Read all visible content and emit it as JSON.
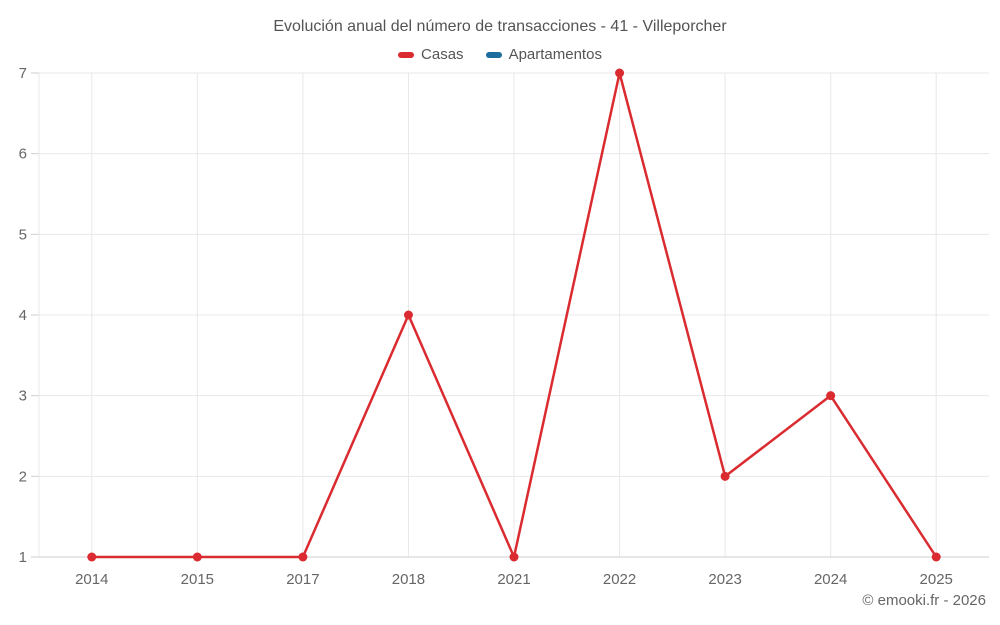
{
  "chart_data": {
    "type": "line",
    "title": "Evolución anual del número de transacciones - 41 - Villeporcher",
    "categories": [
      "2014",
      "2015",
      "2017",
      "2018",
      "2021",
      "2022",
      "2023",
      "2024",
      "2025"
    ],
    "series": [
      {
        "name": "Casas",
        "color": "#da2b30",
        "values": [
          1,
          1,
          1,
          4,
          1,
          7,
          2,
          3,
          1
        ]
      },
      {
        "name": "Apartamentos",
        "color": "#1a6d9c",
        "values": []
      }
    ],
    "xlabel": "",
    "ylabel": "",
    "ylim": [
      1,
      7
    ],
    "yticks": [
      1,
      2,
      3,
      4,
      5,
      6,
      7
    ],
    "grid": true,
    "legend_position": "top"
  },
  "footer": {
    "text": "© emooki.fr - 2026"
  },
  "colors": {
    "background": "#ffffff",
    "grid": "#e8e8e8",
    "axis": "#cfcfcf",
    "tick": "#cfcfcf",
    "axis_label": "#666666",
    "title": "#545454",
    "legend_text": "#555555"
  }
}
